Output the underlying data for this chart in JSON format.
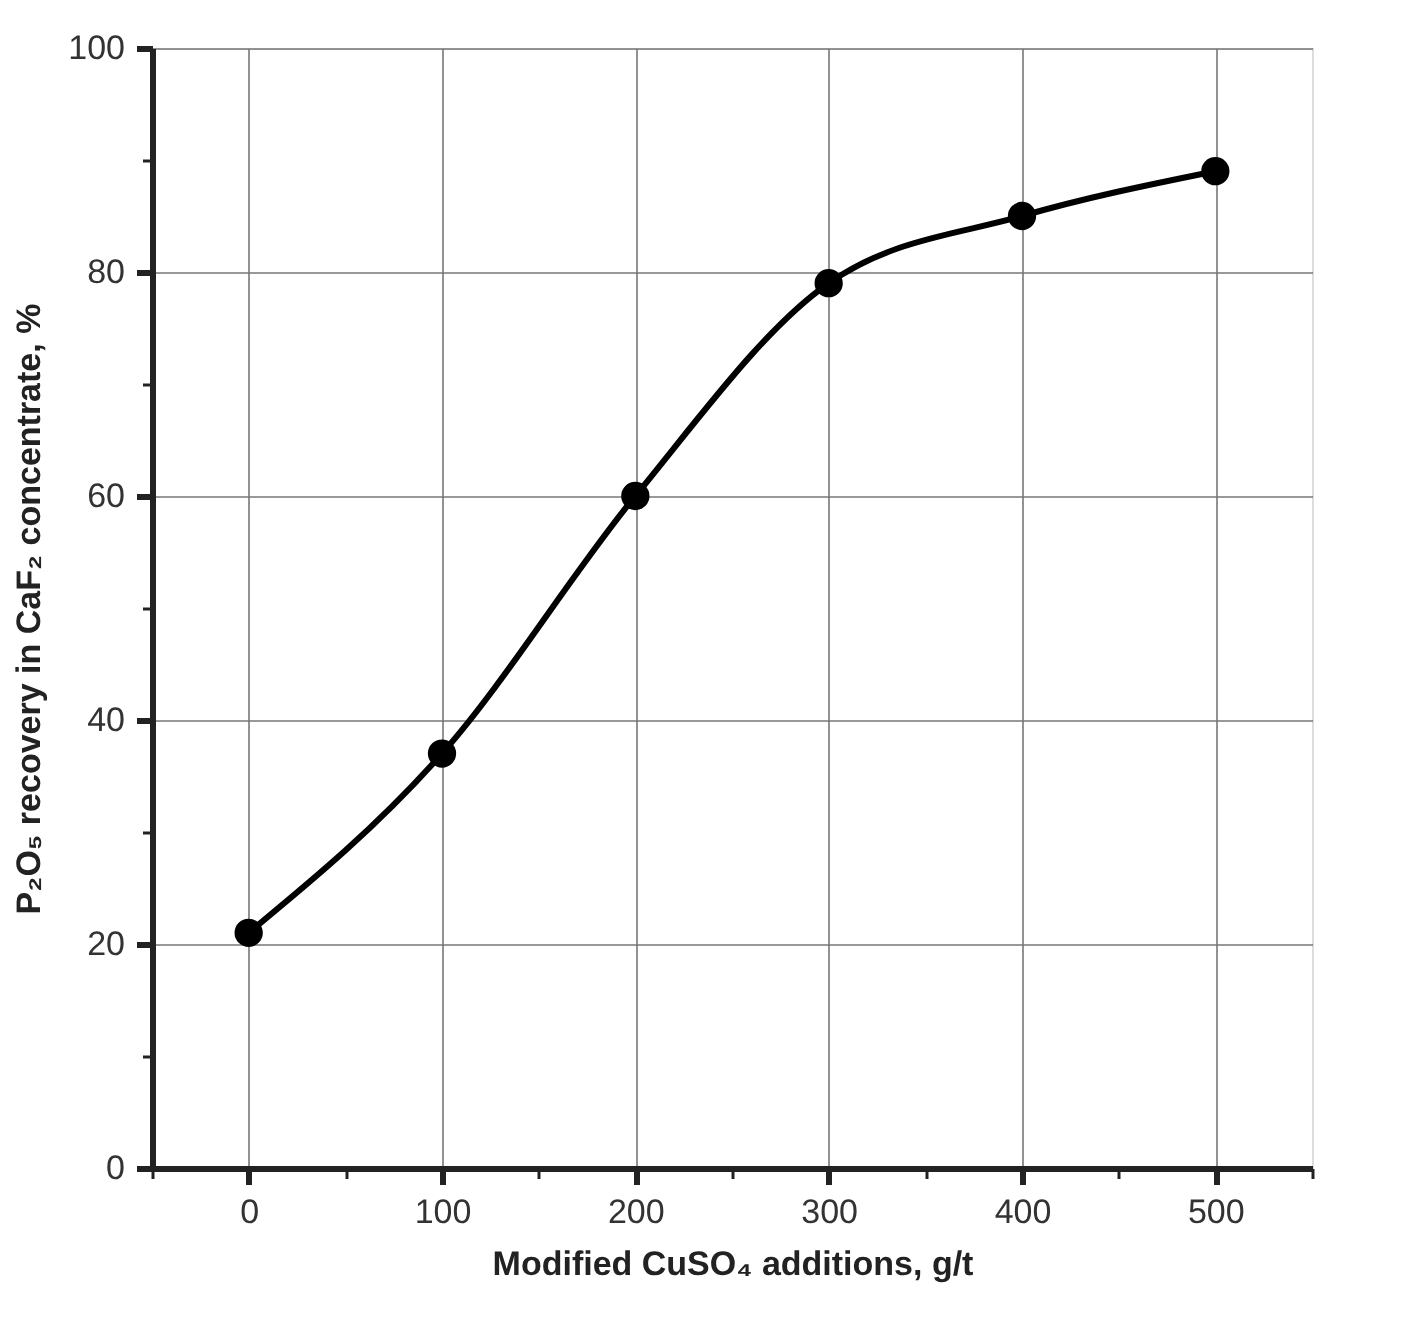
{
  "chart_data": {
    "type": "line",
    "xlabel": "Modified CuSO₄ additions, g/t",
    "ylabel": "P₂O₅ recovery in CaF₂ concentrate, %",
    "x": [
      0,
      100,
      200,
      300,
      400,
      500
    ],
    "series": [
      {
        "color": "#000000",
        "values": [
          21,
          37,
          60,
          79,
          85,
          89
        ]
      }
    ],
    "xlim": [
      -50,
      550
    ],
    "xticks": [
      {
        "value": -50,
        "label": null
      },
      0,
      {
        "value": 50,
        "label": null
      },
      100,
      {
        "value": 150,
        "label": null
      },
      200,
      {
        "value": 250,
        "label": null
      },
      300,
      {
        "value": 350,
        "label": null
      },
      400,
      {
        "value": 450,
        "label": null
      },
      500,
      {
        "value": 550,
        "label": null
      }
    ],
    "ylim": [
      0,
      100
    ],
    "yticks": [
      0,
      {
        "value": 10,
        "label": null
      },
      20,
      {
        "value": 30,
        "label": null
      },
      40,
      {
        "value": 50,
        "label": null
      },
      60,
      {
        "value": 70,
        "label": null
      },
      80,
      {
        "value": 90,
        "label": null
      },
      100
    ],
    "grid": true,
    "marker": "circle",
    "line_style": "solid"
  }
}
